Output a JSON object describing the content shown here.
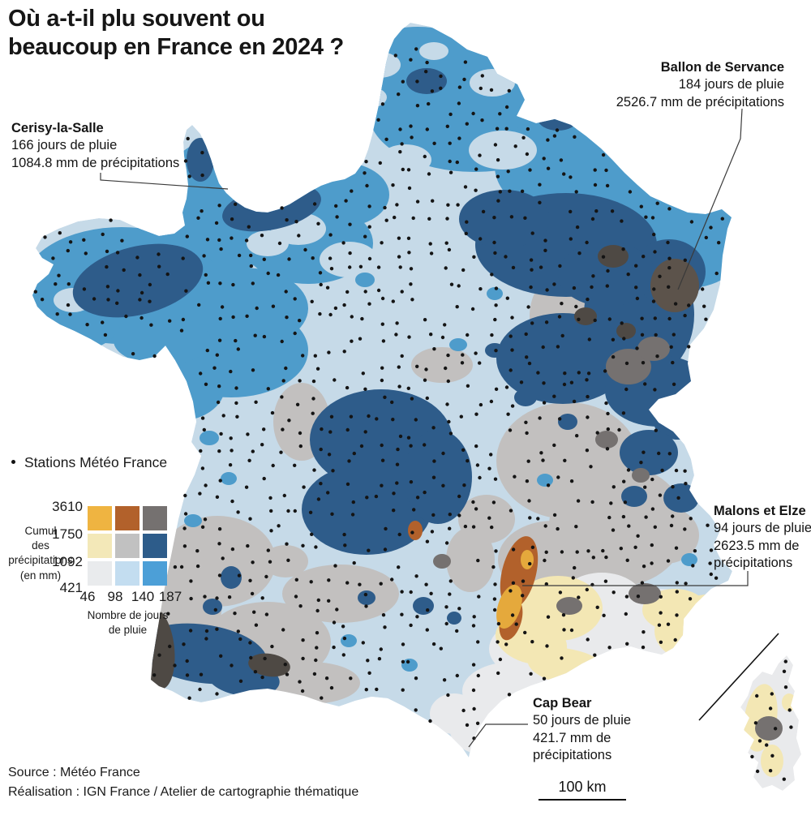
{
  "title": {
    "line1": "Où a-t-il plu souvent ou",
    "line2": "beaucoup en France en 2024 ?"
  },
  "annotations": [
    {
      "name": "Cerisy-la-Salle",
      "lines": [
        "166 jours de pluie",
        "1084.8 mm de précipitations"
      ]
    },
    {
      "name": "Ballon de Servance",
      "lines": [
        "184 jours de pluie",
        "2526.7 mm de précipitations"
      ]
    },
    {
      "name": "Malons et Elze",
      "lines": [
        "94 jours de pluie",
        "2623.5 mm de",
        "précipitations"
      ]
    },
    {
      "name": "Cap Bear",
      "lines": [
        "50 jours de pluie",
        "421.7 mm de",
        "précipitations"
      ]
    }
  ],
  "stations_legend": {
    "label": "Stations Météo France",
    "marker_color": "#111111"
  },
  "legend": {
    "y_axis_title_lines": [
      "Cumul",
      "des",
      "précipitations",
      "(en mm)"
    ],
    "x_axis_title_lines": [
      "Nombre de jours",
      "de pluie"
    ],
    "y_ticks": [
      "3610",
      "1750",
      "1092",
      "421"
    ],
    "x_ticks": [
      "46",
      "98",
      "140",
      "187"
    ],
    "matrix": [
      [
        "#EFB441",
        "#B2612B",
        "#757170"
      ],
      [
        "#F3E8B8",
        "#C1C1C1",
        "#2D5C8A"
      ],
      [
        "#E9EBED",
        "#C3DDF0",
        "#4C9FD7"
      ]
    ]
  },
  "scale_bar": {
    "label": "100 km"
  },
  "source": {
    "line1": "Source : Météo France",
    "line2": "Réalisation : IGN France / Atelier de cartographie thématique"
  },
  "map_colors": {
    "base_pale_blue": "#C6DAE8",
    "medium_blue": "#4E9CCB",
    "dark_blue": "#2E5C8A",
    "gray": "#C2C0BF",
    "very_light_gray": "#E9EAEC",
    "pale_yellow": "#F3E7B4",
    "gold": "#E5A93C",
    "rust": "#B2612B",
    "dark_gray": "#757170",
    "charcoal": "#4E4944",
    "taupe": "#5C534B",
    "station_dot": "#141414",
    "leader_line": "#3a3a3a"
  }
}
